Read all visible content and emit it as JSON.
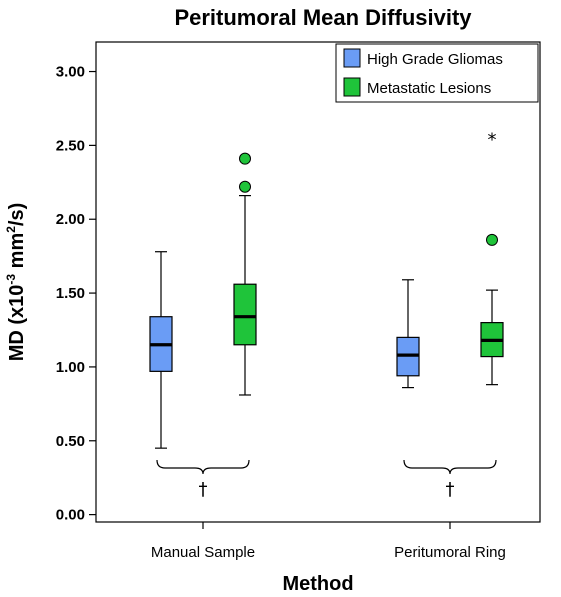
{
  "chart_data": {
    "type": "box",
    "title": "Peritumoral Mean Diffusivity",
    "xlabel": "Method",
    "ylabel": {
      "main": "MD (x10",
      "exp": "-3",
      "unit": " mm",
      "unit_exp": "2",
      "tail": "/s)"
    },
    "ylim": [
      -0.05,
      3.2
    ],
    "yticks": [
      0.0,
      0.5,
      1.0,
      1.5,
      2.0,
      2.5,
      3.0
    ],
    "ytick_labels": [
      "0.00",
      "0.50",
      "1.00",
      "1.50",
      "2.00",
      "2.50",
      "3.00"
    ],
    "grid": false,
    "legend_position": "top-right",
    "categories": [
      "Manual Sample",
      "Peritumoral Ring"
    ],
    "series": [
      {
        "name": "High Grade Gliomas",
        "color": "#6a9cf5",
        "boxes": [
          {
            "category": "Manual Sample",
            "min": 0.45,
            "q1": 0.97,
            "median": 1.15,
            "q3": 1.34,
            "max": 1.78,
            "outliers": [],
            "extremes": []
          },
          {
            "category": "Peritumoral Ring",
            "min": 0.86,
            "q1": 0.94,
            "median": 1.08,
            "q3": 1.2,
            "max": 1.59,
            "outliers": [],
            "extremes": []
          }
        ]
      },
      {
        "name": "Metastatic Lesions",
        "color": "#1fc43a",
        "boxes": [
          {
            "category": "Manual Sample",
            "min": 0.81,
            "q1": 1.15,
            "median": 1.34,
            "q3": 1.56,
            "max": 2.16,
            "outliers": [
              2.22,
              2.41
            ],
            "extremes": []
          },
          {
            "category": "Peritumoral Ring",
            "min": 0.88,
            "q1": 1.07,
            "median": 1.18,
            "q3": 1.3,
            "max": 1.52,
            "outliers": [
              1.86
            ],
            "extremes": [
              2.56
            ]
          }
        ]
      }
    ],
    "annotations": [
      {
        "category": "Manual Sample",
        "symbol": "†"
      },
      {
        "category": "Peritumoral Ring",
        "symbol": "†"
      }
    ],
    "extreme_symbol": "*"
  }
}
